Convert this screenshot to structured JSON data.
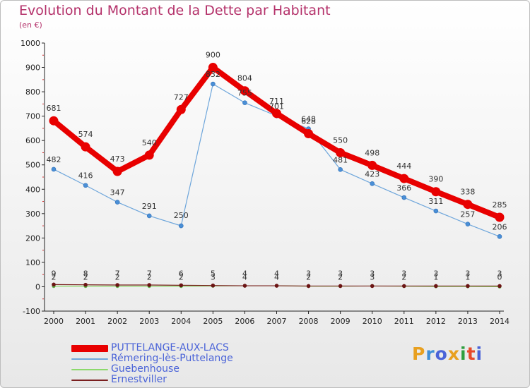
{
  "title": "Evolution du Montant de la Dette par Habitant",
  "subtitle": "(en €)",
  "logo_text": "Proxiti",
  "chart_data": {
    "type": "line",
    "title": "Evolution du Montant de la Dette par Habitant",
    "subtitle": "(en €)",
    "xlabel": "",
    "ylabel": "",
    "x": [
      "2000",
      "2001",
      "2002",
      "2003",
      "2004",
      "2005",
      "2006",
      "2007",
      "2008",
      "2009",
      "2010",
      "2011",
      "2012",
      "2013",
      "2014"
    ],
    "ylim": [
      -100,
      1000
    ],
    "yticks": [
      -100,
      0,
      100,
      200,
      300,
      400,
      500,
      600,
      700,
      800,
      900,
      1000
    ],
    "grid": false,
    "legend_position": "bottom-left",
    "series": [
      {
        "name": "PUTTELANGE-AUX-LACS",
        "color": "#e80000",
        "values": [
          681,
          574,
          473,
          540,
          727,
          900,
          804,
          711,
          628,
          550,
          498,
          444,
          390,
          338,
          285
        ]
      },
      {
        "name": "Rémering-lès-Puttelange",
        "color": "#6ea6db",
        "values": [
          482,
          416,
          347,
          291,
          250,
          832,
          755,
          701,
          648,
          481,
          423,
          366,
          311,
          257,
          206
        ]
      },
      {
        "name": "Guebenhouse",
        "color": "#8cd96b",
        "values": [
          2,
          2,
          2,
          2,
          2,
          3,
          4,
          4,
          2,
          2,
          3,
          2,
          1,
          1,
          0
        ]
      },
      {
        "name": "Ernestviller",
        "color": "#7a1f1f",
        "values": [
          9,
          8,
          7,
          7,
          6,
          5,
          4,
          4,
          3,
          3,
          3,
          3,
          3,
          3,
          3
        ]
      }
    ]
  }
}
